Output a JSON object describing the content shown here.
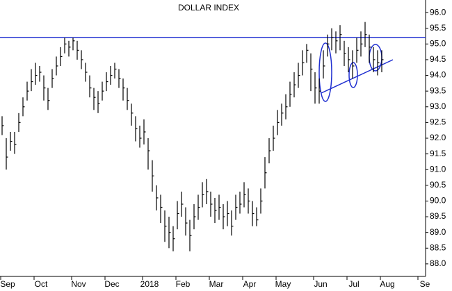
{
  "chart_data": {
    "type": "hlc",
    "title": "DOLLAR INDEX",
    "color": "#000000",
    "categories": [
      null,
      "Sep",
      null,
      null,
      null,
      null,
      null,
      null,
      null,
      "Oct",
      null,
      null,
      null,
      null,
      null,
      null,
      null,
      null,
      "Nov",
      null,
      null,
      null,
      null,
      null,
      null,
      null,
      "Dec",
      null,
      null,
      null,
      null,
      null,
      null,
      null,
      null,
      "2018",
      null,
      null,
      null,
      null,
      null,
      null,
      null,
      "Feb",
      null,
      null,
      null,
      null,
      null,
      null,
      null,
      "Mar",
      null,
      null,
      null,
      null,
      null,
      null,
      null,
      "Apr",
      null,
      null,
      null,
      null,
      null,
      null,
      null,
      "May",
      null,
      null,
      null,
      null,
      null,
      null,
      null,
      null,
      "Jun",
      null,
      null,
      null,
      null,
      null,
      null,
      null,
      "Jul",
      null,
      null,
      null,
      null,
      null,
      null,
      null,
      "Aug",
      null,
      null,
      null,
      null,
      null,
      null,
      null,
      null,
      "Se"
    ],
    "high": [
      92.7,
      92.0,
      92.2,
      92.2,
      92.8,
      93.3,
      93.8,
      94.2,
      94.4,
      94.3,
      94.0,
      93.6,
      94.2,
      94.6,
      94.9,
      95.2,
      95.1,
      95.2,
      95.1,
      94.8,
      94.4,
      94.0,
      93.6,
      93.5,
      93.8,
      94.1,
      94.3,
      94.4,
      94.2,
      93.9,
      93.6,
      93.1,
      92.7,
      92.4,
      92.6,
      92.0,
      91.3,
      90.5,
      90.2,
      89.7,
      89.5,
      89.2,
      90.0,
      90.3,
      89.8,
      89.4,
      89.9,
      90.2,
      90.6,
      90.7,
      90.3,
      90.1,
      90.2,
      89.9,
      90.0,
      89.7,
      90.2,
      90.3,
      90.6,
      90.4,
      90.0,
      89.8,
      90.4,
      91.4,
      92.0,
      92.4,
      92.9,
      93.1,
      93.4,
      93.8,
      94.1,
      94.4,
      94.8,
      95.0,
      94.7,
      94.1,
      93.9,
      94.8,
      95.3,
      95.5,
      95.4,
      95.6,
      95.1,
      94.9,
      94.8,
      95.2,
      95.4,
      95.7,
      95.3,
      94.9,
      94.8,
      94.8,
      null,
      null,
      null,
      null,
      null,
      null,
      null,
      null,
      null,
      null
    ],
    "low": [
      92.1,
      91.0,
      91.6,
      91.5,
      92.2,
      92.7,
      93.2,
      93.5,
      93.7,
      93.8,
      93.2,
      92.9,
      93.6,
      94.0,
      94.3,
      94.7,
      94.6,
      94.8,
      94.5,
      94.2,
      93.8,
      93.3,
      92.9,
      92.8,
      93.2,
      93.5,
      93.7,
      93.9,
      93.6,
      93.2,
      92.9,
      92.4,
      91.9,
      91.7,
      91.8,
      91.0,
      90.3,
      89.7,
      89.3,
      88.7,
      88.5,
      88.4,
      89.1,
      89.5,
      88.9,
      88.4,
      89.1,
      89.4,
      89.8,
      89.9,
      89.5,
      89.3,
      89.4,
      89.1,
      89.2,
      88.9,
      89.4,
      89.6,
      89.8,
      89.6,
      89.2,
      89.2,
      89.6,
      90.4,
      91.2,
      91.6,
      92.1,
      92.4,
      92.6,
      93.0,
      93.3,
      93.6,
      94.0,
      94.4,
      93.5,
      93.1,
      93.1,
      93.9,
      94.6,
      94.8,
      94.7,
      94.8,
      94.3,
      94.1,
      93.9,
      94.4,
      94.6,
      94.9,
      94.4,
      94.1,
      94.0,
      94.1,
      null,
      null,
      null,
      null,
      null,
      null,
      null,
      null,
      null,
      null
    ],
    "close": [
      92.4,
      91.4,
      91.9,
      91.8,
      92.5,
      93.0,
      93.5,
      93.8,
      94.0,
      94.1,
      93.6,
      93.2,
      93.9,
      94.3,
      94.6,
      95.0,
      94.9,
      95.1,
      94.8,
      94.5,
      94.1,
      93.6,
      93.3,
      93.1,
      93.5,
      93.8,
      94.0,
      94.2,
      93.9,
      93.6,
      93.2,
      92.8,
      92.3,
      92.0,
      92.2,
      91.6,
      90.8,
      90.1,
      89.8,
      89.2,
      89.0,
      88.8,
      89.6,
      89.9,
      89.3,
      88.9,
      89.5,
      89.8,
      90.2,
      90.3,
      89.9,
      89.7,
      89.8,
      89.5,
      89.6,
      89.2,
      89.8,
      89.9,
      90.2,
      90.0,
      89.6,
      89.4,
      90.0,
      90.9,
      91.6,
      92.0,
      92.5,
      92.8,
      93.0,
      93.4,
      93.7,
      94.0,
      94.4,
      94.8,
      94.2,
      93.6,
      93.5,
      94.3,
      95.0,
      95.2,
      95.1,
      95.3,
      94.7,
      94.5,
      94.3,
      94.8,
      95.0,
      95.3,
      94.9,
      94.5,
      94.4,
      94.5,
      null,
      null,
      null,
      null,
      null,
      null,
      null,
      null,
      null,
      null
    ],
    "ylim": [
      87.6,
      96.4
    ],
    "yticks": [
      {
        "value": 88,
        "label": "88.0"
      },
      88.5,
      {
        "value": 89,
        "label": "89.0"
      },
      89.5,
      {
        "value": 90,
        "label": "90.0"
      },
      90.5,
      {
        "value": 91,
        "label": "91.0"
      },
      91.5,
      {
        "value": 92,
        "label": "92.0"
      },
      92.5,
      {
        "value": 93,
        "label": "93.0"
      },
      93.5,
      {
        "value": 94,
        "label": "94.0"
      },
      94.5,
      {
        "value": 95,
        "label": "95.0"
      },
      95.5,
      {
        "value": 96,
        "label": "96.0"
      }
    ],
    "reference_line": {
      "value": 95.2,
      "color": "#1f2fd0"
    }
  }
}
